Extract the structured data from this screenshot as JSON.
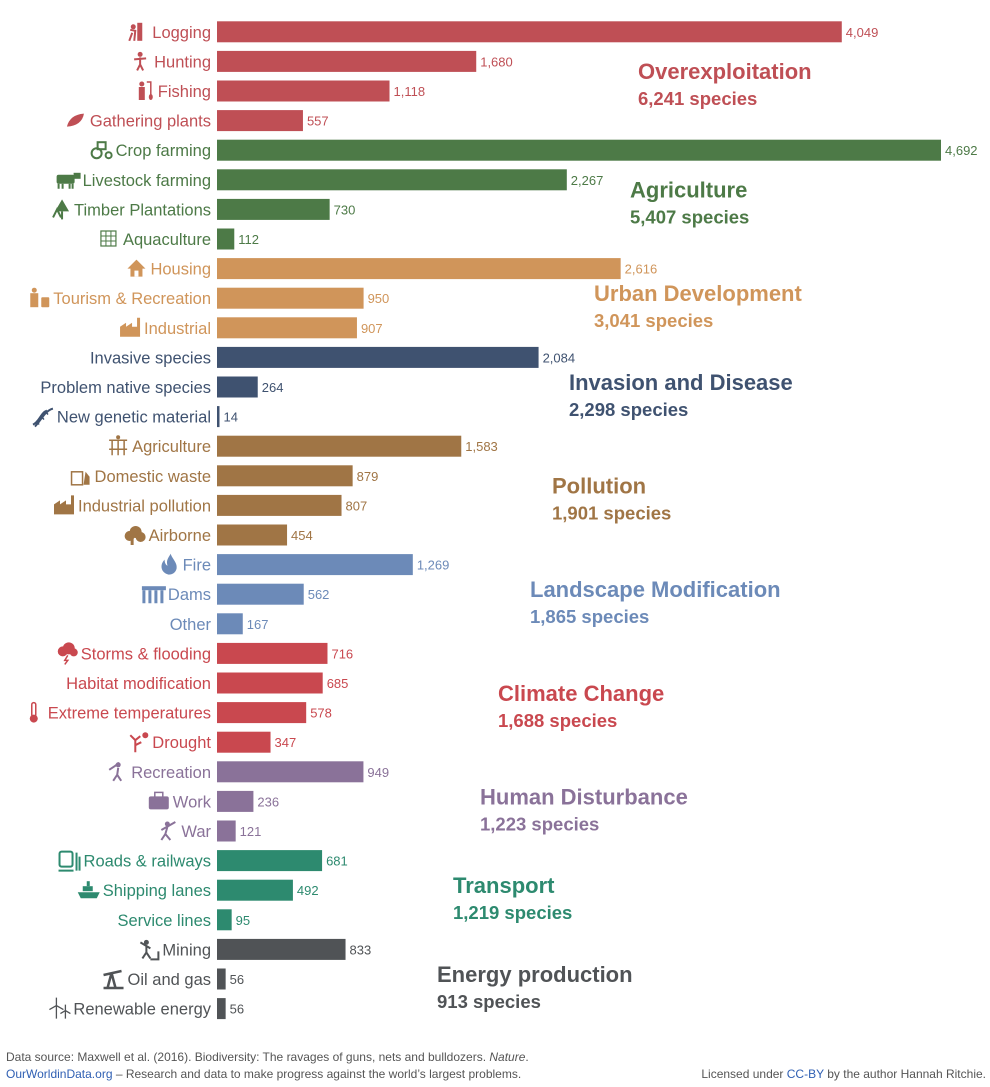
{
  "chart_data": {
    "type": "bar",
    "orientation": "horizontal",
    "xlim": [
      0,
      4692
    ],
    "grid": false,
    "groups": [
      {
        "name": "Overexploitation",
        "total": "6,241 species",
        "color": "#bf4f55",
        "items": [
          {
            "label": "Logging",
            "value": 4049,
            "icon": "logging-icon"
          },
          {
            "label": "Hunting",
            "value": 1680,
            "icon": "hunter-icon"
          },
          {
            "label": "Fishing",
            "value": 1118,
            "icon": "fishing-icon"
          },
          {
            "label": "Gathering plants",
            "value": 557,
            "icon": "leaf-icon"
          }
        ]
      },
      {
        "name": "Agriculture",
        "total": "5,407 species",
        "color": "#4d7a47",
        "items": [
          {
            "label": "Crop farming",
            "value": 4692,
            "icon": "tractor-icon"
          },
          {
            "label": "Livestock farming",
            "value": 2267,
            "icon": "cow-icon"
          },
          {
            "label": "Timber Plantations",
            "value": 730,
            "icon": "tree-icon"
          },
          {
            "label": "Aquaculture",
            "value": 112,
            "icon": "net-icon"
          }
        ]
      },
      {
        "name": "Urban Development",
        "total": "3,041 species",
        "color": "#d0955a",
        "items": [
          {
            "label": "Housing",
            "value": 2616,
            "icon": "house-icon"
          },
          {
            "label": "Tourism & Recreation",
            "value": 950,
            "icon": "luggage-icon"
          },
          {
            "label": "Industrial",
            "value": 907,
            "icon": "factory-icon"
          }
        ]
      },
      {
        "name": "Invasion and Disease",
        "total": "2,298 species",
        "color": "#3f5270",
        "items": [
          {
            "label": "Invasive species",
            "value": 2084,
            "icon": ""
          },
          {
            "label": "Problem native species",
            "value": 264,
            "icon": ""
          },
          {
            "label": "New genetic material",
            "value": 14,
            "icon": "dna-icon"
          }
        ]
      },
      {
        "name": "Pollution",
        "total": "1,901 species",
        "color": "#a07545",
        "items": [
          {
            "label": "Agriculture",
            "value": 1583,
            "icon": "sprayer-icon"
          },
          {
            "label": "Domestic waste",
            "value": 879,
            "icon": "waste-icon"
          },
          {
            "label": "Industrial pollution",
            "value": 807,
            "icon": "factory-icon"
          },
          {
            "label": "Airborne",
            "value": 454,
            "icon": "cloud-icon"
          }
        ]
      },
      {
        "name": "Landscape Modification",
        "total": "1,865 species",
        "color": "#6c8ab8",
        "items": [
          {
            "label": "Fire",
            "value": 1269,
            "icon": "fire-icon"
          },
          {
            "label": "Dams",
            "value": 562,
            "icon": "dam-icon"
          },
          {
            "label": "Other",
            "value": 167,
            "icon": ""
          }
        ]
      },
      {
        "name": "Climate Change",
        "total": "1,688 species",
        "color": "#c9484f",
        "items": [
          {
            "label": "Storms & flooding",
            "value": 716,
            "icon": "storm-icon"
          },
          {
            "label": "Habitat modification",
            "value": 685,
            "icon": ""
          },
          {
            "label": "Extreme temperatures",
            "value": 578,
            "icon": "thermometer-icon"
          },
          {
            "label": "Drought",
            "value": 347,
            "icon": "drought-icon"
          }
        ]
      },
      {
        "name": "Human Disturbance",
        "total": "1,223 species",
        "color": "#8a7299",
        "items": [
          {
            "label": "Recreation",
            "value": 949,
            "icon": "hiker-icon"
          },
          {
            "label": "Work",
            "value": 236,
            "icon": "briefcase-icon"
          },
          {
            "label": "War",
            "value": 121,
            "icon": "soldier-icon"
          }
        ]
      },
      {
        "name": "Transport",
        "total": "1,219 species",
        "color": "#2d8a6f",
        "items": [
          {
            "label": "Roads & railways",
            "value": 681,
            "icon": "train-icon"
          },
          {
            "label": "Shipping lanes",
            "value": 492,
            "icon": "ship-icon"
          },
          {
            "label": "Service lines",
            "value": 95,
            "icon": ""
          }
        ]
      },
      {
        "name": "Energy production",
        "total": "913 species",
        "color": "#505356",
        "items": [
          {
            "label": "Mining",
            "value": 833,
            "icon": "miner-icon"
          },
          {
            "label": "Oil and gas",
            "value": 56,
            "icon": "oil-pump-icon"
          },
          {
            "label": "Renewable energy",
            "value": 56,
            "icon": "wind-turbine-icon"
          }
        ]
      }
    ]
  },
  "footer": {
    "source_prefix": "Data source: Maxwell et al. (2016). Biodiversity: The ravages of guns, nets and bulldozers. ",
    "source_journal": "Nature",
    "source_suffix": ".",
    "site_link": "OurWorldinData.org",
    "site_tagline": " – Research and data to make progress against the world’s largest problems.",
    "license_prefix": "Licensed under ",
    "license_link": "CC-BY",
    "license_suffix": " by the author Hannah Ritchie."
  }
}
